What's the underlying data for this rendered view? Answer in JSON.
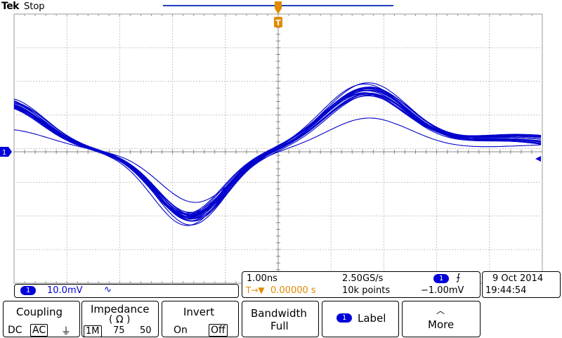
{
  "header": {
    "brand": "Tek",
    "status": "Stop"
  },
  "channel": {
    "marker": "1",
    "scale": "10.0mV",
    "coupling_symbol": "∿"
  },
  "trigger_marker": "T",
  "timebase": {
    "horizontal_scale": "1.00ns",
    "sample_rate": "2.50GS/s",
    "delay_symbol": "T→▼",
    "delay": "0.00000 s",
    "record_length": "10k points",
    "trigger_source": "1",
    "trigger_slope": "⨍",
    "trigger_level": "−1.00mV"
  },
  "datetime": {
    "date": "9 Oct  2014",
    "time": "19:44:54"
  },
  "menu": {
    "coupling": {
      "title": "Coupling",
      "dc": "DC",
      "ac": "AC",
      "gnd": "⏚"
    },
    "impedance": {
      "title": "Impedance",
      "subtitle": "( Ω )",
      "opt1": "1M",
      "opt2": "75",
      "opt3": "50"
    },
    "invert": {
      "title": "Invert",
      "on": "On",
      "off": "Off"
    },
    "bandwidth": {
      "title": "Bandwidth",
      "value": "Full"
    },
    "label": {
      "badge": "1",
      "title": "Label"
    },
    "more": {
      "arrow": "︿",
      "title": "More"
    }
  },
  "colors": {
    "trace": "#0000cc",
    "graticule": "#888888",
    "trigger": "#e08a00",
    "channel": "#0000d8"
  }
}
